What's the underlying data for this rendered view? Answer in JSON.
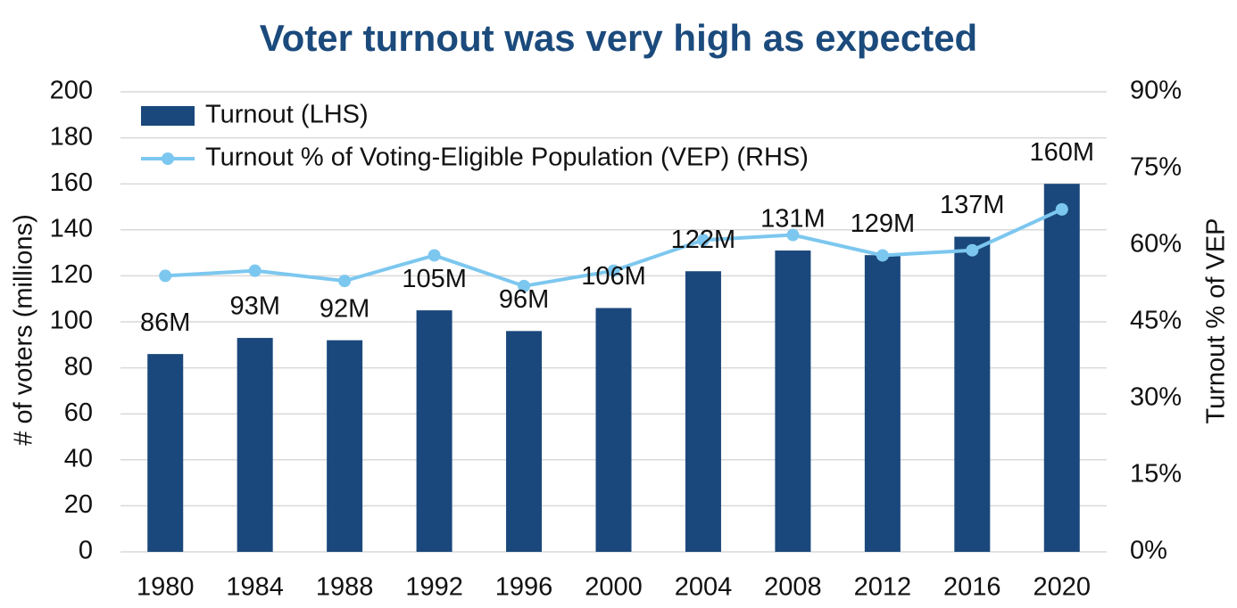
{
  "chart_data": {
    "type": "bar",
    "title": "Voter turnout was very high as expected",
    "categories": [
      "1980",
      "1984",
      "1988",
      "1992",
      "1996",
      "2000",
      "2004",
      "2008",
      "2012",
      "2016",
      "2020"
    ],
    "series": [
      {
        "name": "Turnout (LHS)",
        "type": "bar",
        "color": "#1a487c",
        "values": [
          86,
          93,
          92,
          105,
          96,
          106,
          122,
          131,
          129,
          137,
          160
        ],
        "value_labels": [
          "86M",
          "93M",
          "92M",
          "105M",
          "96M",
          "106M",
          "122M",
          "131M",
          "129M",
          "137M",
          "160M"
        ]
      },
      {
        "name": "Turnout % of Voting-Eligible Population (VEP) (RHS)",
        "type": "line",
        "axis": "y2",
        "color": "#7cc7ef",
        "values": [
          54,
          55,
          53,
          58,
          52,
          55,
          61,
          62,
          58,
          59,
          67
        ]
      }
    ],
    "ylabel": "# of voters (millions)",
    "y2label": "Turnout % of VEP",
    "ylim": [
      0,
      200
    ],
    "yticks": [
      0,
      20,
      40,
      60,
      80,
      100,
      120,
      140,
      160,
      180,
      200
    ],
    "y2lim": [
      0,
      90
    ],
    "y2ticks": [
      {
        "value": 0,
        "label": "0%"
      },
      {
        "value": 15,
        "label": "15%"
      },
      {
        "value": 30,
        "label": "30%"
      },
      {
        "value": 45,
        "label": "45%"
      },
      {
        "value": 60,
        "label": "60%"
      },
      {
        "value": 75,
        "label": "75%"
      },
      {
        "value": 90,
        "label": "90%"
      }
    ],
    "grid": true,
    "legend": "upper left"
  }
}
